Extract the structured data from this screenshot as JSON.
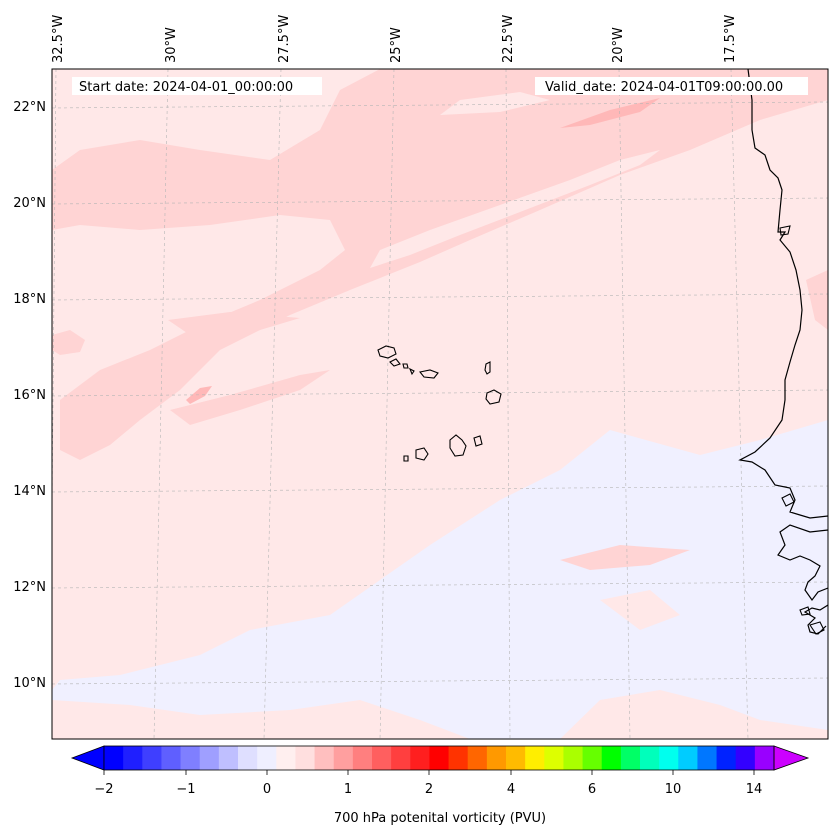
{
  "map": {
    "start_date": "Start date: 2024-04-01_00:00:00",
    "valid_date": "Valid_date: 2024-04-01T09:00:00.00",
    "lon_labels": [
      "32.5°W",
      "30°W",
      "27.5°W",
      "25°W",
      "22.5°W",
      "20°W",
      "17.5°W"
    ],
    "lat_labels": [
      "22°N",
      "20°N",
      "18°N",
      "16°N",
      "14°N",
      "12°N",
      "10°N"
    ],
    "gridlines": "dashed",
    "coastline_color": "#000000"
  },
  "colorbar": {
    "label": "700 hPa potenital vorticity (PVU)",
    "tick_labels": [
      "−2",
      "−1",
      "0",
      "1",
      "2",
      "4",
      "6",
      "10",
      "14"
    ],
    "extend": "both",
    "colors": [
      "#0000ff",
      "#1f1fff",
      "#3f3fff",
      "#5f5fff",
      "#7f7fff",
      "#9f9fff",
      "#bfbfff",
      "#dfdfff",
      "#efefff",
      "#ffefef",
      "#ffdfdf",
      "#ffbfbf",
      "#ff9f9f",
      "#ff7f7f",
      "#ff5f5f",
      "#ff3f3f",
      "#ff1f1f",
      "#ff0000",
      "#ff3300",
      "#ff6600",
      "#ff9900",
      "#ffbb00",
      "#ffee00",
      "#ddff00",
      "#aaff00",
      "#66ff00",
      "#00ff00",
      "#00ff66",
      "#00ffbb",
      "#00ffee",
      "#00ccff",
      "#0077ff",
      "#0022ff",
      "#3300ff",
      "#9900ff"
    ],
    "under_color": "#0000ff",
    "over_color": "#cc00ff"
  },
  "field": {
    "background_color": "#ffe8e8",
    "light_negative_color": "#f0f0ff",
    "positive_band_color": "#ffd4d4",
    "strong_positive_color": "#ffb8b8"
  }
}
